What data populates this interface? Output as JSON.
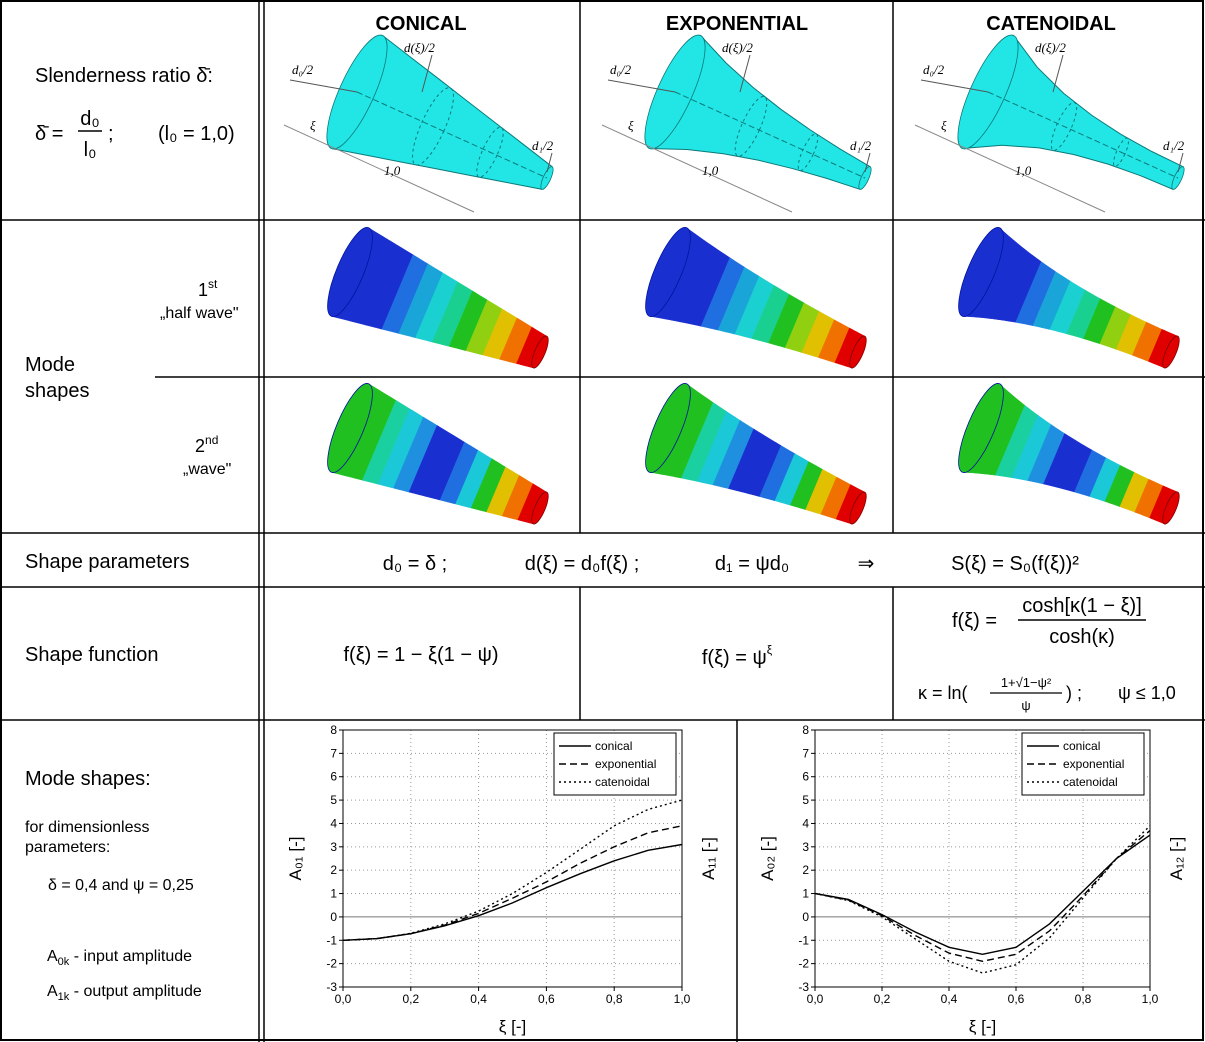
{
  "header": {
    "columns": [
      "CONICAL",
      "EXPONENTIAL",
      "CATENOIDAL"
    ]
  },
  "geometry": {
    "label": "Slenderness ratio δ̄:",
    "formula": {
      "lhs": "δ̄ =",
      "num": "d₀",
      "den": "l₀",
      "sep": ";",
      "note": "(l₀ = 1,0)"
    },
    "drawing_labels": {
      "d0": "d₀/2",
      "dxi": "d(ξ)/2",
      "d1": "d₁/2",
      "xi": "ξ",
      "length": "1,0"
    }
  },
  "mode_shapes": {
    "label_lines": [
      "Mode",
      "shapes"
    ],
    "first": {
      "num": "1",
      "sup": "st",
      "name": "„half wave\""
    },
    "second": {
      "num": "2",
      "sup": "nd",
      "name": "„wave\""
    }
  },
  "shape_parameters": {
    "label": "Shape parameters",
    "parts": [
      "d₀ = δ ;",
      "d(ξ) = d₀f(ξ) ;",
      "d₁ = ψd₀",
      "⇒",
      "S(ξ) = S₀(f(ξ))²"
    ]
  },
  "shape_function": {
    "label": "Shape function",
    "conical": "f(ξ) = 1 − ξ(1 − ψ)",
    "exponential": {
      "base": "f(ξ) = ψ",
      "sup": "ξ"
    },
    "catenoidal": {
      "lhs": "f(ξ) =",
      "num": "cosh[κ(1 − ξ)]",
      "den": "cosh(κ)",
      "kappa": {
        "lhs": "κ = ln(",
        "num": "1+√1−ψ²",
        "den": "ψ",
        "rhs": ") ;"
      },
      "condition": "ψ ≤ 1,0"
    }
  },
  "mode_plots": {
    "label": "Mode shapes:",
    "note_lines": [
      "for dimensionless",
      "parameters:"
    ],
    "params": "δ = 0,4  and  ψ = 0,25",
    "input": {
      "sym": "A",
      "sub": "0k",
      "text": " - input amplitude"
    },
    "output": {
      "sym": "A",
      "sub": "1k",
      "text": " - output amplitude"
    }
  },
  "chart_data": [
    {
      "type": "line",
      "xlabel": "ξ [-]",
      "ylabel": "A₀₁ [-]",
      "ylabel_right": "A₁₁ [-]",
      "x": [
        0,
        0.1,
        0.2,
        0.3,
        0.4,
        0.5,
        0.6,
        0.7,
        0.8,
        0.9,
        1.0
      ],
      "series": [
        {
          "name": "conical",
          "color": "#000000",
          "dash": "solid",
          "values": [
            -1,
            -0.93,
            -0.72,
            -0.38,
            0.05,
            0.6,
            1.25,
            1.85,
            2.4,
            2.85,
            3.1
          ]
        },
        {
          "name": "exponential",
          "color": "#000000",
          "dash": "dashed",
          "values": [
            -1,
            -0.93,
            -0.72,
            -0.35,
            0.15,
            0.8,
            1.5,
            2.3,
            3.0,
            3.6,
            3.9
          ]
        },
        {
          "name": "catenoidal",
          "color": "#000000",
          "dash": "dotted",
          "values": [
            -1,
            -0.93,
            -0.7,
            -0.3,
            0.25,
            1.0,
            1.9,
            2.9,
            3.9,
            4.6,
            5.0
          ]
        }
      ],
      "xlim": [
        0,
        1
      ],
      "ylim": [
        -3,
        8
      ],
      "xticks": [
        {
          "value": 0,
          "label": "0,0"
        },
        {
          "value": 0.2,
          "label": "0,2"
        },
        {
          "value": 0.4,
          "label": "0,4"
        },
        {
          "value": 0.6,
          "label": "0,6"
        },
        {
          "value": 0.8,
          "label": "0,8"
        },
        {
          "value": 1,
          "label": "1,0"
        }
      ],
      "yticks": [
        -3,
        -2,
        -1,
        0,
        1,
        2,
        3,
        4,
        5,
        6,
        7,
        8
      ],
      "grid": true,
      "zero_line": true,
      "legend": "upper right"
    },
    {
      "type": "line",
      "xlabel": "ξ [-]",
      "ylabel": "A₀₂ [-]",
      "ylabel_right": "A₁₂ [-]",
      "x": [
        0,
        0.1,
        0.2,
        0.3,
        0.4,
        0.5,
        0.6,
        0.7,
        0.8,
        0.9,
        1.0
      ],
      "series": [
        {
          "name": "conical",
          "color": "#000000",
          "dash": "solid",
          "values": [
            1,
            0.75,
            0.1,
            -0.65,
            -1.3,
            -1.6,
            -1.3,
            -0.3,
            1.1,
            2.5,
            3.5
          ]
        },
        {
          "name": "exponential",
          "color": "#000000",
          "dash": "dashed",
          "values": [
            1,
            0.72,
            0.05,
            -0.8,
            -1.55,
            -1.9,
            -1.6,
            -0.6,
            0.9,
            2.5,
            3.7
          ]
        },
        {
          "name": "catenoidal",
          "color": "#000000",
          "dash": "dotted",
          "values": [
            1,
            0.7,
            0,
            -0.95,
            -1.9,
            -2.4,
            -2.05,
            -0.9,
            0.8,
            2.5,
            3.9
          ]
        }
      ],
      "xlim": [
        0,
        1
      ],
      "ylim": [
        -3,
        8
      ],
      "xticks": [
        {
          "value": 0,
          "label": "0,0"
        },
        {
          "value": 0.2,
          "label": "0,2"
        },
        {
          "value": 0.4,
          "label": "0,4"
        },
        {
          "value": 0.6,
          "label": "0,6"
        },
        {
          "value": 0.8,
          "label": "0,8"
        },
        {
          "value": 1,
          "label": "1,0"
        }
      ],
      "yticks": [
        -3,
        -2,
        -1,
        0,
        1,
        2,
        3,
        4,
        5,
        6,
        7,
        8
      ],
      "grid": true,
      "zero_line": true,
      "legend": "upper right"
    }
  ]
}
